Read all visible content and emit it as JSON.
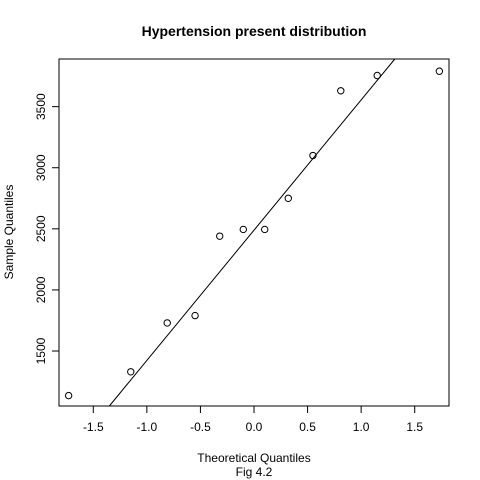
{
  "chart_data": {
    "type": "scatter",
    "title": "Hypertension present distribution",
    "xlabel": "Theoretical Quantiles",
    "caption": "Fig 4.2",
    "ylabel": "Sample Quantiles",
    "xlim": [
      -1.82,
      1.82
    ],
    "ylim": [
      1050,
      3890
    ],
    "x_ticks": [
      -1.5,
      -1.0,
      -0.5,
      0.0,
      0.5,
      1.0,
      1.5
    ],
    "x_tick_labels": [
      "-1.5",
      "-1.0",
      "-0.5",
      "0.0",
      "0.5",
      "1.0",
      "1.5"
    ],
    "y_ticks": [
      1500,
      2000,
      2500,
      3000,
      3500
    ],
    "y_tick_labels": [
      "1500",
      "2000",
      "2500",
      "3000",
      "3500"
    ],
    "points": [
      {
        "x": -1.73,
        "y": 1135
      },
      {
        "x": -1.15,
        "y": 1330
      },
      {
        "x": -0.81,
        "y": 1730
      },
      {
        "x": -0.55,
        "y": 1790
      },
      {
        "x": -0.32,
        "y": 2440
      },
      {
        "x": -0.1,
        "y": 2495
      },
      {
        "x": 0.1,
        "y": 2495
      },
      {
        "x": 0.32,
        "y": 2750
      },
      {
        "x": 0.55,
        "y": 3100
      },
      {
        "x": 0.81,
        "y": 3630
      },
      {
        "x": 1.15,
        "y": 3755
      },
      {
        "x": 1.73,
        "y": 3790
      }
    ],
    "reference_line": {
      "intercept": 2489,
      "slope": 1066
    },
    "grid": false,
    "legend": "none"
  }
}
